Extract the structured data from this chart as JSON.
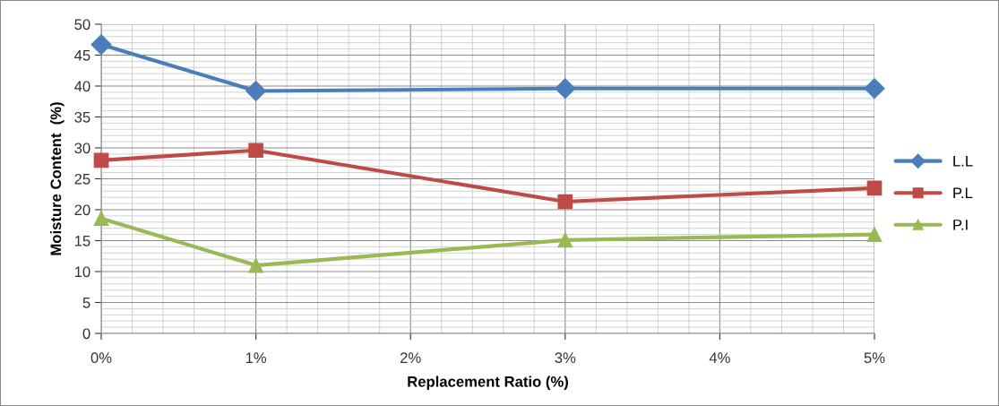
{
  "chart_data": {
    "type": "line",
    "xlabel": "Replacement Ratio (%)",
    "ylabel": "Moisture Content  (%)",
    "x": [
      0,
      1,
      3,
      5
    ],
    "series": [
      {
        "name": "L.L",
        "color": "#4a7ebb",
        "marker": "diamond",
        "values": [
          46.7,
          39.2,
          39.6,
          39.6
        ]
      },
      {
        "name": "P.L",
        "color": "#be4b48",
        "marker": "square",
        "values": [
          28.0,
          29.6,
          21.3,
          23.5
        ]
      },
      {
        "name": "P.I",
        "color": "#98b954",
        "marker": "triangle",
        "values": [
          18.6,
          11.0,
          15.1,
          16.0
        ]
      }
    ],
    "xlim": [
      0,
      5
    ],
    "xticks": [
      {
        "value": 0,
        "label": "0%"
      },
      {
        "value": 1,
        "label": "1%"
      },
      {
        "value": 2,
        "label": "2%"
      },
      {
        "value": 3,
        "label": "3%"
      },
      {
        "value": 4,
        "label": "4%"
      },
      {
        "value": 5,
        "label": "5%"
      }
    ],
    "ylim": [
      0,
      50
    ],
    "yticks": [
      0,
      5,
      10,
      15,
      20,
      25,
      30,
      35,
      40,
      45,
      50
    ],
    "grid": true,
    "legend": "right",
    "line_style": "solid"
  }
}
